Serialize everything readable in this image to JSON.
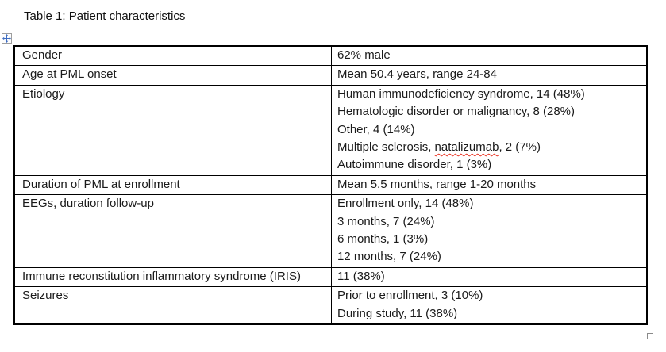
{
  "title": "Table 1: Patient characteristics",
  "misspelled_words": [
    "natalizumab"
  ],
  "colors": {
    "spellcheck_underline": "#ea3323",
    "move_handle_arrow": "#3f6dc2",
    "table_border": "#000000"
  },
  "icons": {
    "move_handle": "table-move-handle-icon",
    "resize_handle": "table-resize-handle"
  },
  "table": {
    "rows": [
      {
        "label": "Gender",
        "values": [
          "62% male"
        ]
      },
      {
        "label": "Age at PML onset",
        "values": [
          "Mean 50.4 years, range 24-84"
        ]
      },
      {
        "label": "Etiology",
        "values": [
          "Human immunodeficiency syndrome, 14 (48%)",
          "Hematologic disorder or malignancy, 8 (28%)",
          "Other, 4 (14%)",
          "Multiple sclerosis, natalizumab, 2 (7%)",
          "Autoimmune disorder, 1 (3%)"
        ]
      },
      {
        "label": "Duration of PML at enrollment",
        "values": [
          "Mean 5.5 months, range 1-20 months"
        ]
      },
      {
        "label": "EEGs, duration follow-up",
        "values": [
          "Enrollment only, 14 (48%)",
          "3 months, 7 (24%)",
          "6 months, 1 (3%)",
          "12 months, 7 (24%)"
        ]
      },
      {
        "label": "Immune reconstitution inflammatory syndrome (IRIS)",
        "values": [
          "11 (38%)"
        ]
      },
      {
        "label": "Seizures",
        "values": [
          "Prior to enrollment, 3 (10%)",
          "During study, 11 (38%)"
        ]
      }
    ]
  }
}
